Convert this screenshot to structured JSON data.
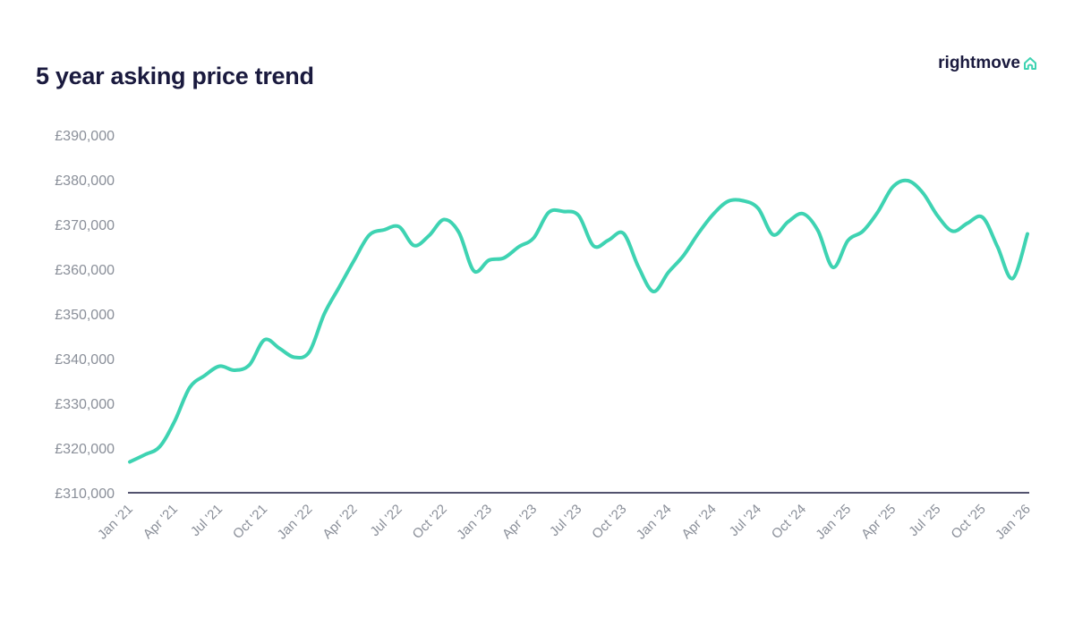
{
  "brand": {
    "name": "rightmove",
    "icon": "house-outline-icon",
    "icon_color": "#3ed3b2"
  },
  "chart_data": {
    "type": "line",
    "title": "5 year asking price trend",
    "xlabel": "",
    "ylabel": "",
    "ylim": [
      310000,
      390000
    ],
    "yticks": [
      310000,
      320000,
      330000,
      340000,
      350000,
      360000,
      370000,
      380000,
      390000
    ],
    "ytick_labels": [
      "£310,000",
      "£320,000",
      "£330,000",
      "£340,000",
      "£350,000",
      "£360,000",
      "£370,000",
      "£380,000",
      "£390,000"
    ],
    "xtick_labels": [
      "Jan '21",
      "Apr '21",
      "Jul '21",
      "Oct '21",
      "Jan '22",
      "Apr '22",
      "Jul '22",
      "Oct '22",
      "Jan '23",
      "Apr '23",
      "Jul '23",
      "Oct '23",
      "Jan '24",
      "Apr '24",
      "Jul '24",
      "Oct '24",
      "Jan '25",
      "Apr '25",
      "Jul '25",
      "Oct '25",
      "Jan '26"
    ],
    "grid": false,
    "line_color": "#3ed3b2",
    "series": [
      {
        "x": [
          "2021-01",
          "2021-02",
          "2021-03",
          "2021-04",
          "2021-05",
          "2021-06",
          "2021-07",
          "2021-08",
          "2021-09",
          "2021-10",
          "2021-11",
          "2021-12",
          "2022-01",
          "2022-02",
          "2022-03",
          "2022-04",
          "2022-05",
          "2022-06",
          "2022-07",
          "2022-08",
          "2022-09",
          "2022-10",
          "2022-11",
          "2022-12",
          "2023-01",
          "2023-02",
          "2023-03",
          "2023-04",
          "2023-05",
          "2023-06",
          "2023-07",
          "2023-08",
          "2023-09",
          "2023-10",
          "2023-11",
          "2023-12",
          "2024-01",
          "2024-02",
          "2024-03",
          "2024-04",
          "2024-05",
          "2024-06",
          "2024-07",
          "2024-08",
          "2024-09",
          "2024-10",
          "2024-11",
          "2024-12",
          "2025-01",
          "2025-02",
          "2025-03",
          "2025-04",
          "2025-05",
          "2025-06",
          "2025-07",
          "2025-08",
          "2025-09",
          "2025-10",
          "2025-11",
          "2025-12",
          "2026-01"
        ],
        "values": [
          316900,
          318500,
          320300,
          326000,
          333500,
          336200,
          338300,
          337400,
          338600,
          344200,
          342300,
          340300,
          341500,
          350000,
          356000,
          362000,
          367600,
          368800,
          369500,
          365300,
          367500,
          371100,
          368200,
          359600,
          362000,
          362500,
          365000,
          367000,
          372700,
          372900,
          372000,
          365200,
          366500,
          368000,
          360500,
          355000,
          359300,
          363000,
          368000,
          372300,
          375200,
          375300,
          373600,
          367700,
          370600,
          372400,
          368600,
          360400,
          366400,
          368500,
          372800,
          378400,
          379800,
          377100,
          371900,
          368500,
          370300,
          371600,
          365000,
          357900,
          367900
        ]
      }
    ]
  }
}
